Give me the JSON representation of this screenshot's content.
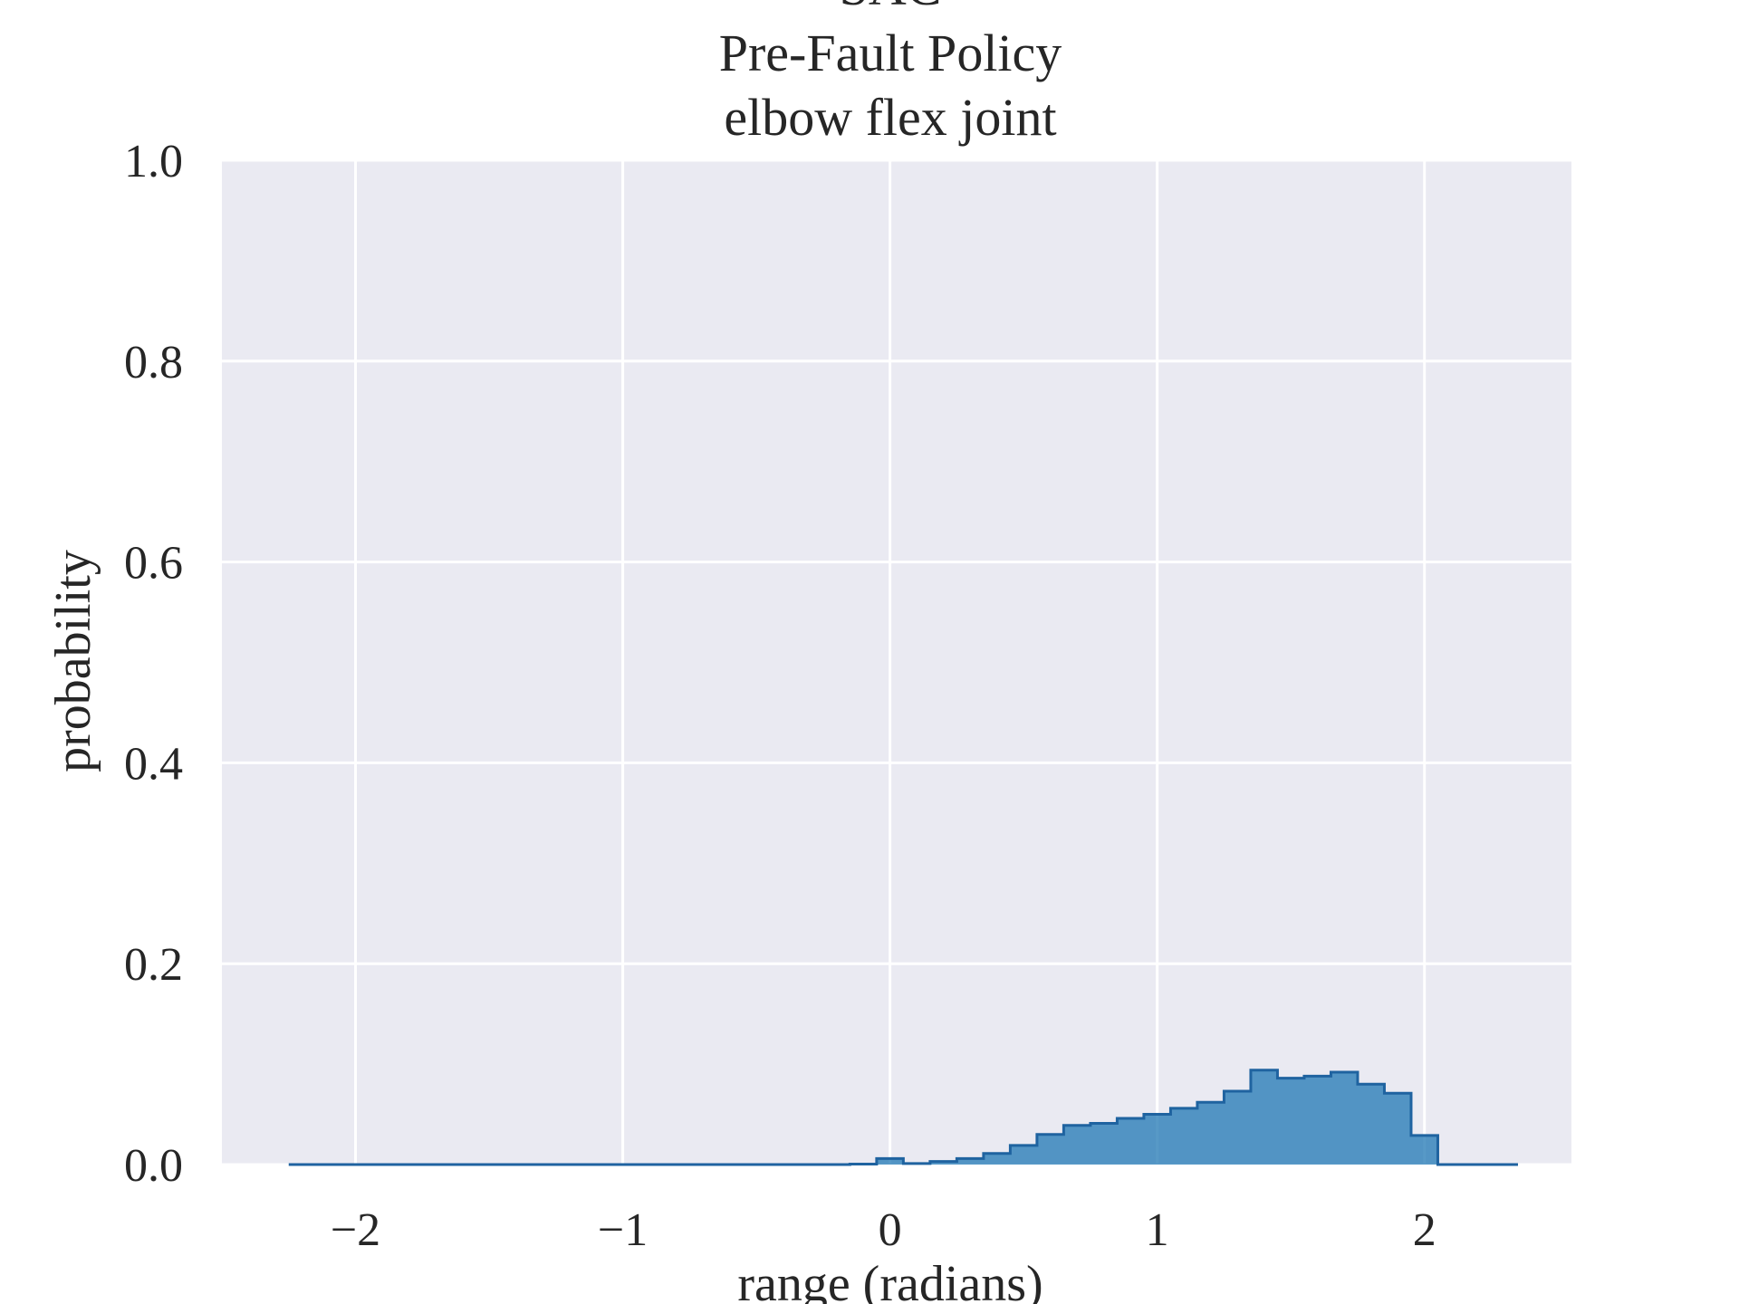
{
  "chart_data": {
    "type": "histogram",
    "title_lines": [
      "SAC",
      "Pre-Fault Policy",
      "elbow flex joint"
    ],
    "xlabel": "range (radians)",
    "ylabel": "probability",
    "xlim": [
      -2.5,
      2.55
    ],
    "ylim": [
      0,
      1.0
    ],
    "x_ticks": [
      {
        "value": -2,
        "label": "−2"
      },
      {
        "value": -1,
        "label": "−1"
      },
      {
        "value": 0,
        "label": "0"
      },
      {
        "value": 1,
        "label": "1"
      },
      {
        "value": 2,
        "label": "2"
      }
    ],
    "y_ticks": [
      {
        "value": 0.0,
        "label": "0.0"
      },
      {
        "value": 0.2,
        "label": "0.2"
      },
      {
        "value": 0.4,
        "label": "0.4"
      },
      {
        "value": 0.6,
        "label": "0.6"
      },
      {
        "value": 0.8,
        "label": "0.8"
      },
      {
        "value": 1.0,
        "label": "1.0"
      }
    ],
    "grid": true,
    "bin_edges": [
      -2.25,
      -2.15,
      -2.05,
      -1.95,
      -1.85,
      -1.75,
      -1.65,
      -1.55,
      -1.45,
      -1.35,
      -1.25,
      -1.15,
      -1.05,
      -0.95,
      -0.85,
      -0.75,
      -0.65,
      -0.55,
      -0.45,
      -0.35,
      -0.25,
      -0.15,
      -0.05,
      0.05,
      0.15,
      0.25,
      0.35,
      0.45,
      0.55,
      0.65,
      0.75,
      0.85,
      0.95,
      1.05,
      1.15,
      1.25,
      1.35,
      1.45,
      1.55,
      1.65,
      1.75,
      1.85,
      1.95,
      2.05,
      2.15,
      2.25,
      2.35
    ],
    "values": [
      0,
      0,
      0,
      0,
      0,
      0,
      0,
      0,
      0,
      0,
      0,
      0,
      0,
      0,
      0,
      0,
      0,
      0,
      0,
      0,
      0,
      0.0005,
      0.006,
      0.001,
      0.003,
      0.006,
      0.011,
      0.019,
      0.03,
      0.039,
      0.041,
      0.046,
      0.05,
      0.056,
      0.062,
      0.073,
      0.094,
      0.086,
      0.088,
      0.092,
      0.08,
      0.071,
      0.029,
      0,
      0,
      0
    ],
    "colors": {
      "background": "#eaeaf2",
      "grid": "#ffffff",
      "fill": "#1f77b4",
      "edge": "#1f63a0",
      "text": "#262626"
    }
  }
}
